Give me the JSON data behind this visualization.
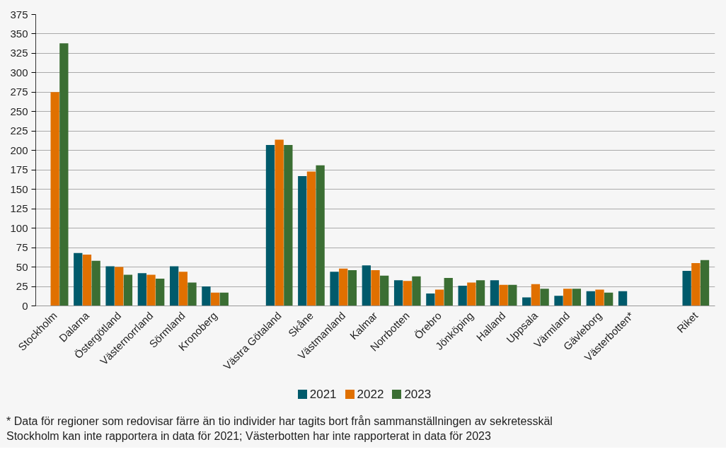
{
  "chart_data": {
    "type": "bar",
    "categories": [
      "Stockholm",
      "Dalarna",
      "Östergötland",
      "Västernorrland",
      "Sörmland",
      "Kronoberg",
      null,
      "Västra Götaland",
      "Skåne",
      "Västmanland",
      "Kalmar",
      "Norrbotten",
      "Örebro",
      "Jönköping",
      "Halland",
      "Uppsala",
      "Värmland",
      "Gävleborg",
      "Västerbotten*",
      null,
      "Riket"
    ],
    "series": [
      {
        "name": "2021",
        "color": "#005a6b",
        "values": [
          null,
          68,
          51,
          42,
          51,
          25,
          null,
          207,
          167,
          44,
          52,
          33,
          16,
          26,
          33,
          11,
          13,
          19,
          19,
          null,
          45
        ]
      },
      {
        "name": "2022",
        "color": "#e07000",
        "values": [
          275,
          66,
          50,
          40,
          44,
          17,
          null,
          214,
          173,
          48,
          46,
          32,
          21,
          30,
          27,
          28,
          22,
          21,
          null,
          null,
          55
        ]
      },
      {
        "name": "2023",
        "color": "#3b6e33",
        "values": [
          338,
          58,
          40,
          35,
          30,
          17,
          null,
          207,
          181,
          46,
          39,
          38,
          36,
          33,
          27,
          22,
          22,
          17,
          null,
          null,
          59
        ]
      }
    ],
    "ylim": [
      0,
      375
    ],
    "yticks": [
      0,
      25,
      50,
      75,
      100,
      125,
      150,
      175,
      200,
      225,
      250,
      275,
      300,
      325,
      350,
      375
    ],
    "grid": "y",
    "legend": "bottom",
    "annotations": [
      "* Data för regioner som redovisar färre än tio individer har tagits bort från sammanställningen av sekretesskäl",
      "Stockholm kan inte rapportera in data för 2021; Västerbotten har inte rapporterat in data för 2023"
    ]
  }
}
